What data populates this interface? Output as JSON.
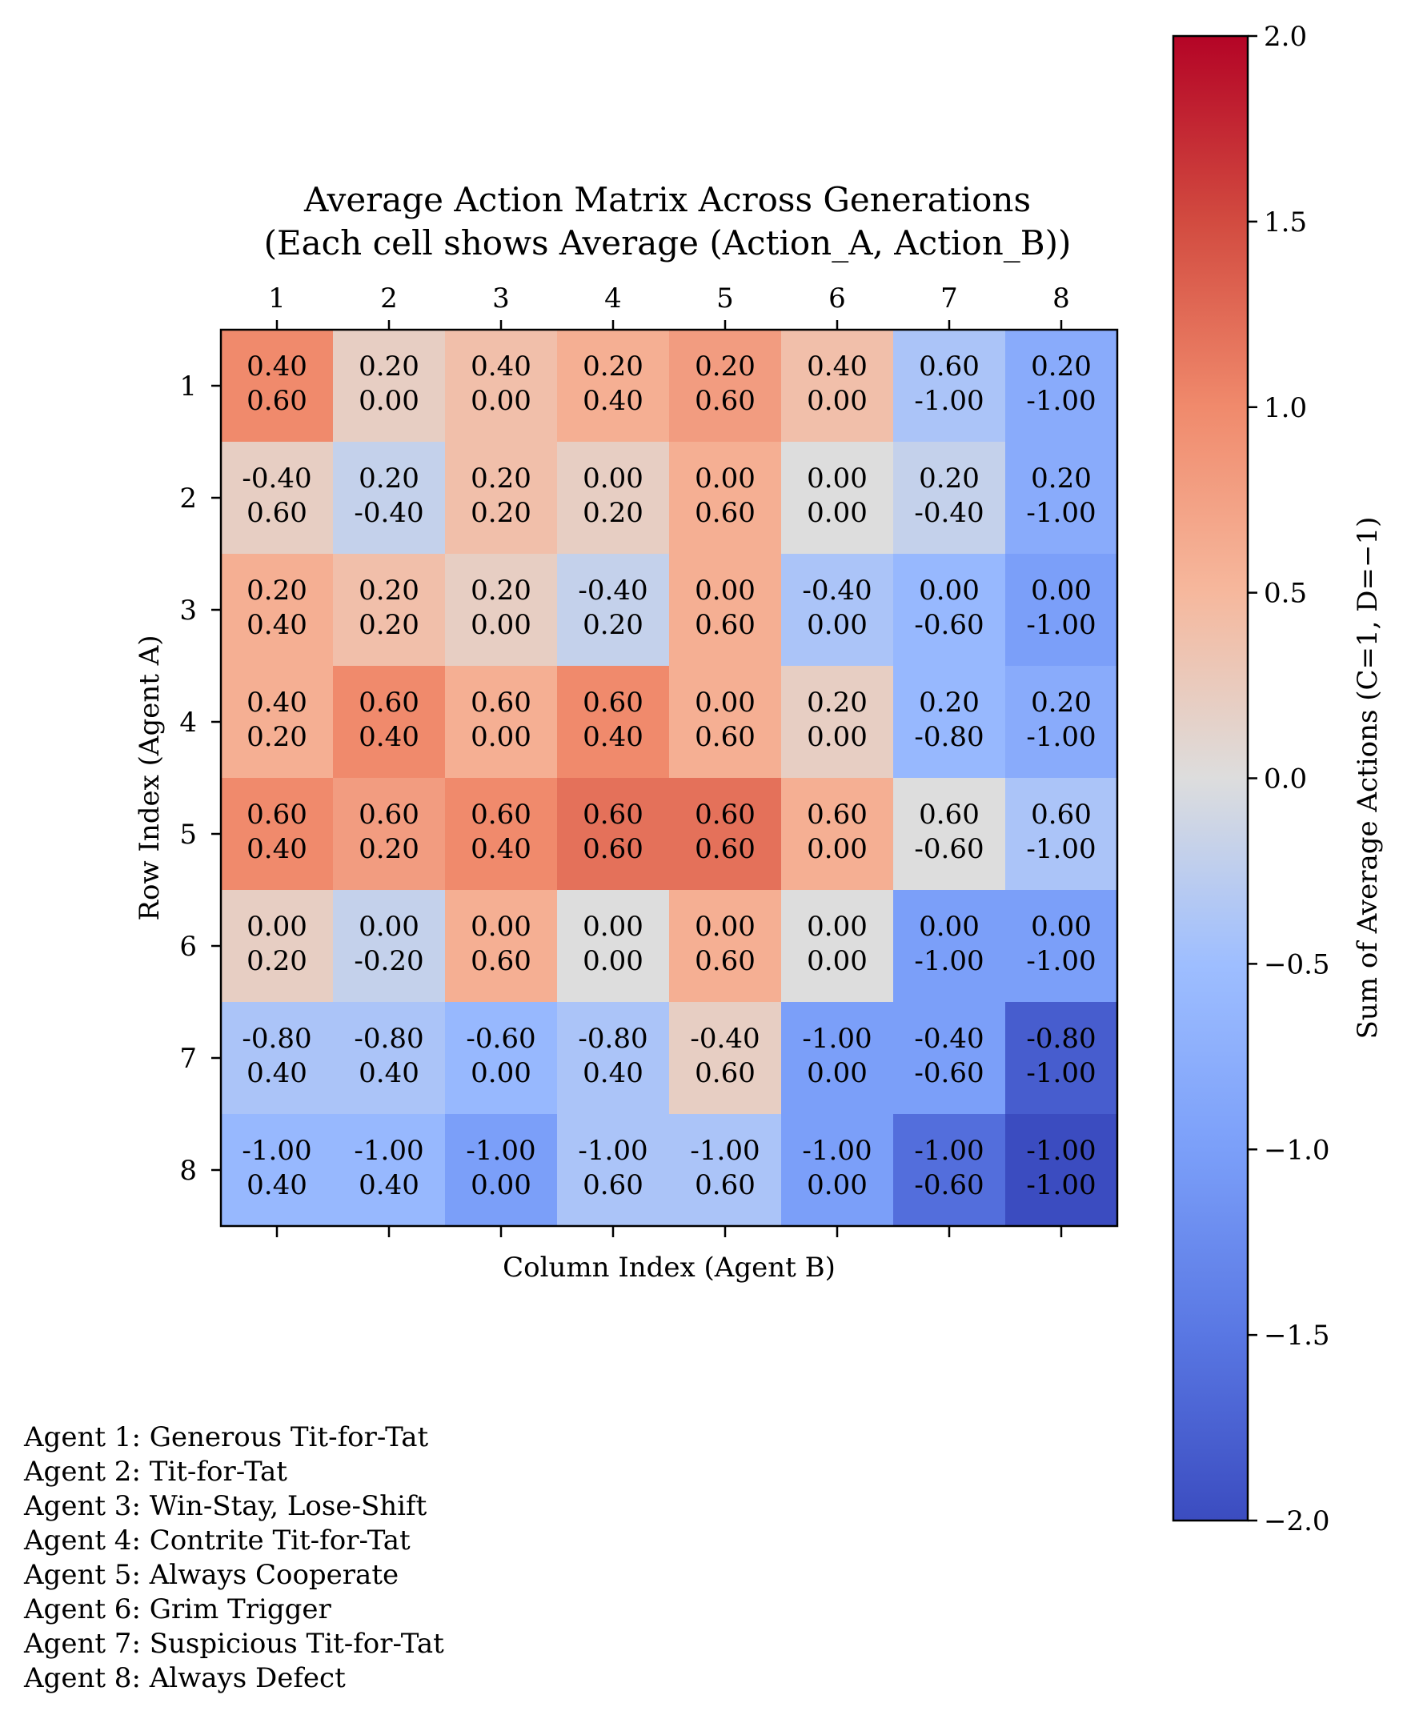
{
  "chart_data": {
    "type": "heatmap",
    "title": "Average Action Matrix Across Generations",
    "subtitle": "(Each cell shows Average (Action_A, Action_B))",
    "xlabel": "Column Index (Agent B)",
    "ylabel": "Row Index (Agent A)",
    "colorbar_label": "Sum of Average Actions (C=1, D=−1)",
    "row_labels": [
      "1",
      "2",
      "3",
      "4",
      "5",
      "6",
      "7",
      "8"
    ],
    "col_labels": [
      "1",
      "2",
      "3",
      "4",
      "5",
      "6",
      "7",
      "8"
    ],
    "color_range": [
      -2.0,
      2.0
    ],
    "colorbar_ticks": [
      "2.0",
      "1.5",
      "1.0",
      "0.5",
      "0.0",
      "−0.5",
      "−1.0",
      "−1.5",
      "−2.0"
    ],
    "colormap": "coolwarm",
    "cells": [
      [
        {
          "a": "0.40",
          "b": "0.60"
        },
        {
          "a": "0.20",
          "b": "0.00"
        },
        {
          "a": "0.40",
          "b": "0.00"
        },
        {
          "a": "0.20",
          "b": "0.40"
        },
        {
          "a": "0.20",
          "b": "0.60"
        },
        {
          "a": "0.40",
          "b": "0.00"
        },
        {
          "a": "0.60",
          "b": "-1.00"
        },
        {
          "a": "0.20",
          "b": "-1.00"
        }
      ],
      [
        {
          "a": "-0.40",
          "b": "0.60"
        },
        {
          "a": "0.20",
          "b": "-0.40"
        },
        {
          "a": "0.20",
          "b": "0.20"
        },
        {
          "a": "0.00",
          "b": "0.20"
        },
        {
          "a": "0.00",
          "b": "0.60"
        },
        {
          "a": "0.00",
          "b": "0.00"
        },
        {
          "a": "0.20",
          "b": "-0.40"
        },
        {
          "a": "0.20",
          "b": "-1.00"
        }
      ],
      [
        {
          "a": "0.20",
          "b": "0.40"
        },
        {
          "a": "0.20",
          "b": "0.20"
        },
        {
          "a": "0.20",
          "b": "0.00"
        },
        {
          "a": "-0.40",
          "b": "0.20"
        },
        {
          "a": "0.00",
          "b": "0.60"
        },
        {
          "a": "-0.40",
          "b": "0.00"
        },
        {
          "a": "0.00",
          "b": "-0.60"
        },
        {
          "a": "0.00",
          "b": "-1.00"
        }
      ],
      [
        {
          "a": "0.40",
          "b": "0.20"
        },
        {
          "a": "0.60",
          "b": "0.40"
        },
        {
          "a": "0.60",
          "b": "0.00"
        },
        {
          "a": "0.60",
          "b": "0.40"
        },
        {
          "a": "0.00",
          "b": "0.60"
        },
        {
          "a": "0.20",
          "b": "0.00"
        },
        {
          "a": "0.20",
          "b": "-0.80"
        },
        {
          "a": "0.20",
          "b": "-1.00"
        }
      ],
      [
        {
          "a": "0.60",
          "b": "0.40"
        },
        {
          "a": "0.60",
          "b": "0.20"
        },
        {
          "a": "0.60",
          "b": "0.40"
        },
        {
          "a": "0.60",
          "b": "0.60"
        },
        {
          "a": "0.60",
          "b": "0.60"
        },
        {
          "a": "0.60",
          "b": "0.00"
        },
        {
          "a": "0.60",
          "b": "-0.60"
        },
        {
          "a": "0.60",
          "b": "-1.00"
        }
      ],
      [
        {
          "a": "0.00",
          "b": "0.20"
        },
        {
          "a": "0.00",
          "b": "-0.20"
        },
        {
          "a": "0.00",
          "b": "0.60"
        },
        {
          "a": "0.00",
          "b": "0.00"
        },
        {
          "a": "0.00",
          "b": "0.60"
        },
        {
          "a": "0.00",
          "b": "0.00"
        },
        {
          "a": "0.00",
          "b": "-1.00"
        },
        {
          "a": "0.00",
          "b": "-1.00"
        }
      ],
      [
        {
          "a": "-0.80",
          "b": "0.40"
        },
        {
          "a": "-0.80",
          "b": "0.40"
        },
        {
          "a": "-0.60",
          "b": "0.00"
        },
        {
          "a": "-0.80",
          "b": "0.40"
        },
        {
          "a": "-0.40",
          "b": "0.60"
        },
        {
          "a": "-1.00",
          "b": "0.00"
        },
        {
          "a": "-0.40",
          "b": "-0.60"
        },
        {
          "a": "-0.80",
          "b": "-1.00"
        }
      ],
      [
        {
          "a": "-1.00",
          "b": "0.40"
        },
        {
          "a": "-1.00",
          "b": "0.40"
        },
        {
          "a": "-1.00",
          "b": "0.00"
        },
        {
          "a": "-1.00",
          "b": "0.60"
        },
        {
          "a": "-1.00",
          "b": "0.60"
        },
        {
          "a": "-1.00",
          "b": "0.00"
        },
        {
          "a": "-1.00",
          "b": "-0.60"
        },
        {
          "a": "-1.00",
          "b": "-1.00"
        }
      ]
    ]
  },
  "legend": [
    "Agent 1: Generous Tit-for-Tat",
    "Agent 2: Tit-for-Tat",
    "Agent 3: Win-Stay, Lose-Shift",
    "Agent 4: Contrite Tit-for-Tat",
    "Agent 5: Always Cooperate",
    "Agent 6: Grim Trigger",
    "Agent 7: Suspicious Tit-for-Tat",
    "Agent 8: Always Defect"
  ]
}
